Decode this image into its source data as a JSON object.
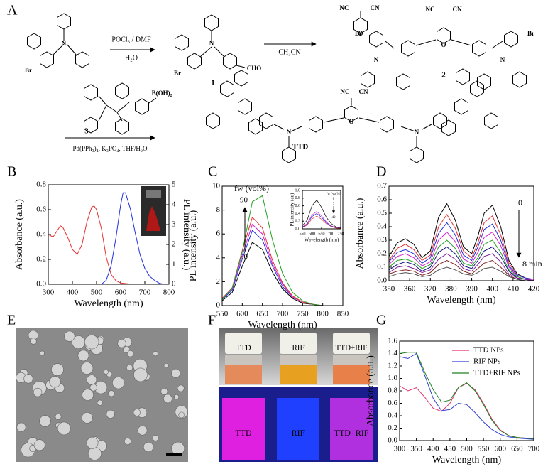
{
  "panel_labels": [
    "A",
    "B",
    "C",
    "D",
    "E",
    "F",
    "G"
  ],
  "scheme": {
    "reagents": [
      "POCl₃ / DMF",
      "H₂O",
      "CH₃CN",
      "Pd(PPh₃)₄, K₃PO₄, THF/H₂O"
    ],
    "compounds": [
      "1",
      "2",
      "3",
      "TTD"
    ],
    "atoms": [
      "Br",
      "N",
      "Br",
      "N",
      "CHO",
      "NC",
      "CN",
      "O",
      "Br",
      "N",
      "NC",
      "CN",
      "O",
      "N",
      "Br",
      "B(OH)₂",
      "NC",
      "CN",
      "O",
      "N",
      "N"
    ]
  },
  "photos": {
    "vials_daylight": [
      "TTD",
      "RIF",
      "TTD+RIF"
    ],
    "vials_uv": [
      "TTD",
      "RIF",
      "TTD+RIF"
    ]
  },
  "chart_data": [
    {
      "type": "line",
      "xlabel": "Wavelength (nm)",
      "ylabel": "Absorbance (a.u.)",
      "y2label": "PL intensity (a.u.)",
      "xlim": [
        300,
        800
      ],
      "xticks": [
        300,
        400,
        500,
        600,
        700,
        800
      ],
      "ylim": [
        0,
        0.8
      ],
      "yticks": [
        {
          "value": 0,
          "label": "0.0"
        },
        0.2,
        0.4,
        0.6,
        0.8
      ],
      "y2lim": [
        0,
        5
      ],
      "y2ticks": [
        0,
        1,
        2,
        3,
        4,
        5
      ],
      "series": [
        {
          "color": "#e53030",
          "x": [
            300,
            320,
            340,
            350,
            360,
            380,
            400,
            420,
            440,
            460,
            480,
            490,
            500,
            520,
            540,
            560,
            580,
            600,
            650,
            700
          ],
          "values": [
            0.4,
            0.38,
            0.44,
            0.47,
            0.46,
            0.38,
            0.28,
            0.24,
            0.32,
            0.5,
            0.62,
            0.63,
            0.6,
            0.45,
            0.22,
            0.08,
            0.03,
            0.01,
            0,
            0
          ]
        },
        {
          "color": "#2030e0",
          "axis": "y2",
          "x": [
            520,
            540,
            560,
            580,
            600,
            610,
            620,
            640,
            660,
            680,
            700,
            720,
            740,
            760,
            780
          ],
          "values": [
            0,
            0.2,
            0.9,
            2.3,
            4.0,
            4.6,
            4.6,
            3.8,
            2.6,
            1.5,
            0.8,
            0.4,
            0.2,
            0.05,
            0
          ]
        }
      ]
    },
    {
      "type": "line",
      "xlabel": "Wavelength (nm)",
      "ylabel": "PL intensity (a.u.)",
      "xlim": [
        550,
        850
      ],
      "xticks": [
        550,
        600,
        650,
        700,
        750,
        800,
        850
      ],
      "ylim": [
        0,
        10
      ],
      "yticks": [
        0,
        2,
        4,
        6,
        8,
        10
      ],
      "annotations": [
        "fw (vol%)",
        "90",
        "50"
      ],
      "x": [
        550,
        575,
        600,
        625,
        650,
        675,
        700,
        725,
        750,
        775,
        800
      ],
      "series": [
        {
          "color": "#000000",
          "values": [
            0.4,
            1.1,
            3.3,
            5.3,
            4.7,
            2.8,
            1.4,
            0.6,
            0.2,
            0.1,
            0
          ]
        },
        {
          "color": "#2030e0",
          "values": [
            0.5,
            1.3,
            3.9,
            6.3,
            5.5,
            3.3,
            1.6,
            0.7,
            0.3,
            0.1,
            0
          ]
        },
        {
          "color": "#d020d0",
          "values": [
            0.6,
            1.4,
            4.2,
            6.8,
            6.0,
            3.5,
            1.8,
            0.7,
            0.3,
            0.1,
            0
          ]
        },
        {
          "color": "#e53030",
          "values": [
            0.6,
            1.5,
            4.6,
            7.4,
            6.5,
            3.8,
            1.9,
            0.8,
            0.3,
            0.1,
            0
          ]
        },
        {
          "color": "#20a020",
          "values": [
            0.5,
            1.5,
            4.5,
            8.7,
            9.2,
            5.5,
            2.7,
            1.1,
            0.4,
            0.1,
            0
          ]
        }
      ]
    },
    {
      "type": "line",
      "xlabel": "Wavelength (nm)",
      "ylabel": "PL intensity (au)",
      "xlim": [
        550,
        750
      ],
      "xticks": [
        550,
        600,
        650,
        700,
        750
      ],
      "ylim": [
        0,
        1
      ],
      "yticks": [
        {
          "value": 0,
          "label": "0.0"
        },
        0.2,
        0.4,
        0.6,
        0.8,
        {
          "value": 1,
          "label": "1.0"
        }
      ],
      "annotations": [
        "fw (vol%)",
        "0",
        "40"
      ],
      "x": [
        550,
        575,
        600,
        625,
        650,
        675,
        700,
        725,
        750
      ],
      "series": [
        {
          "color": "#000000",
          "values": [
            0.08,
            0.23,
            0.6,
            0.75,
            0.56,
            0.3,
            0.14,
            0.05,
            0.02
          ]
        },
        {
          "color": "#d020d0",
          "values": [
            0.05,
            0.14,
            0.36,
            0.45,
            0.34,
            0.18,
            0.08,
            0.03,
            0.01
          ]
        },
        {
          "color": "#2030e0",
          "values": [
            0.04,
            0.12,
            0.32,
            0.4,
            0.3,
            0.16,
            0.07,
            0.03,
            0.01
          ]
        },
        {
          "color": "#e53030",
          "values": [
            0.03,
            0.1,
            0.26,
            0.33,
            0.25,
            0.13,
            0.06,
            0.02,
            0.01
          ]
        }
      ]
    },
    {
      "type": "line",
      "xlabel": "Wavelength (nm)",
      "ylabel": "Absorbance (a.u.)",
      "xlim": [
        350,
        420
      ],
      "xticks": [
        350,
        360,
        370,
        380,
        390,
        400,
        410,
        420
      ],
      "ylim": [
        0,
        0.7
      ],
      "yticks": [
        {
          "value": 0,
          "label": "0.0"
        },
        0.1,
        0.2,
        0.3,
        0.4,
        0.5,
        0.6,
        0.7
      ],
      "annotations": [
        "0",
        "8 min"
      ],
      "x": [
        350,
        354,
        358,
        362,
        366,
        370,
        374,
        378,
        382,
        386,
        390,
        393,
        396,
        400,
        404,
        408,
        412,
        416,
        420
      ],
      "series": [
        {
          "color": "#000000",
          "values": [
            0.18,
            0.28,
            0.31,
            0.27,
            0.17,
            0.22,
            0.47,
            0.57,
            0.45,
            0.25,
            0.2,
            0.33,
            0.5,
            0.56,
            0.4,
            0.15,
            0.05,
            0.02,
            0.01
          ]
        },
        {
          "color": "#e53030",
          "values": [
            0.15,
            0.24,
            0.27,
            0.23,
            0.15,
            0.19,
            0.4,
            0.49,
            0.39,
            0.22,
            0.17,
            0.28,
            0.43,
            0.48,
            0.34,
            0.13,
            0.04,
            0.02,
            0.01
          ]
        },
        {
          "color": "#2030e0",
          "values": [
            0.14,
            0.21,
            0.23,
            0.2,
            0.13,
            0.17,
            0.35,
            0.43,
            0.34,
            0.19,
            0.15,
            0.25,
            0.38,
            0.42,
            0.3,
            0.11,
            0.04,
            0.02,
            0.01
          ]
        },
        {
          "color": "#d020d0",
          "values": [
            0.12,
            0.18,
            0.2,
            0.17,
            0.11,
            0.14,
            0.3,
            0.36,
            0.29,
            0.16,
            0.13,
            0.21,
            0.32,
            0.36,
            0.26,
            0.1,
            0.03,
            0.01,
            0.01
          ]
        },
        {
          "color": "#20a020",
          "values": [
            0.1,
            0.15,
            0.16,
            0.14,
            0.09,
            0.12,
            0.25,
            0.3,
            0.24,
            0.13,
            0.11,
            0.17,
            0.27,
            0.3,
            0.21,
            0.08,
            0.03,
            0.01,
            0
          ]
        },
        {
          "color": "#101080",
          "values": [
            0.08,
            0.12,
            0.14,
            0.12,
            0.07,
            0.1,
            0.21,
            0.25,
            0.2,
            0.11,
            0.09,
            0.15,
            0.22,
            0.25,
            0.18,
            0.07,
            0.02,
            0.01,
            0
          ]
        },
        {
          "color": "#8020a0",
          "values": [
            0.06,
            0.1,
            0.11,
            0.09,
            0.06,
            0.08,
            0.16,
            0.2,
            0.16,
            0.09,
            0.07,
            0.12,
            0.18,
            0.2,
            0.14,
            0.05,
            0.02,
            0.01,
            0
          ]
        },
        {
          "color": "#802020",
          "values": [
            0.05,
            0.07,
            0.08,
            0.07,
            0.04,
            0.06,
            0.12,
            0.15,
            0.12,
            0.07,
            0.05,
            0.09,
            0.13,
            0.15,
            0.1,
            0.04,
            0.01,
            0,
            0
          ]
        },
        {
          "color": "#505050",
          "values": [
            0.03,
            0.05,
            0.06,
            0.05,
            0.03,
            0.04,
            0.08,
            0.1,
            0.08,
            0.05,
            0.04,
            0.06,
            0.09,
            0.1,
            0.07,
            0.03,
            0.01,
            0,
            0
          ]
        }
      ]
    },
    {
      "type": "line",
      "xlabel": "Wavelength (nm)",
      "ylabel": "Absorbance (a.u.)",
      "xlim": [
        300,
        700
      ],
      "xticks": [
        300,
        350,
        400,
        450,
        500,
        550,
        600,
        650,
        700
      ],
      "ylim": [
        0,
        1.6
      ],
      "yticks": [
        {
          "value": 0,
          "label": "0.0"
        },
        0.2,
        0.4,
        0.6,
        0.8,
        {
          "value": 1,
          "label": "1.0"
        },
        1.2,
        1.4,
        1.6
      ],
      "legend": "upper right",
      "x": [
        300,
        325,
        350,
        375,
        400,
        425,
        450,
        475,
        500,
        525,
        550,
        575,
        600,
        625,
        650,
        675,
        700
      ],
      "series": [
        {
          "name": "TTD NPs",
          "color": "#e0306a",
          "values": [
            0.88,
            0.8,
            0.85,
            0.7,
            0.52,
            0.47,
            0.6,
            0.85,
            0.92,
            0.82,
            0.6,
            0.35,
            0.17,
            0.08,
            0.05,
            0.04,
            0.03
          ]
        },
        {
          "name": "RIF NPs",
          "color": "#3040d0",
          "values": [
            1.35,
            1.32,
            1.4,
            1.05,
            0.68,
            0.48,
            0.5,
            0.6,
            0.58,
            0.45,
            0.3,
            0.18,
            0.1,
            0.06,
            0.04,
            0.03,
            0.02
          ]
        },
        {
          "name": "TTD+RIF NPs",
          "color": "#208020",
          "values": [
            1.4,
            1.42,
            1.42,
            1.1,
            0.82,
            0.62,
            0.65,
            0.85,
            0.93,
            0.8,
            0.58,
            0.33,
            0.16,
            0.08,
            0.05,
            0.04,
            0.03
          ]
        }
      ]
    }
  ]
}
